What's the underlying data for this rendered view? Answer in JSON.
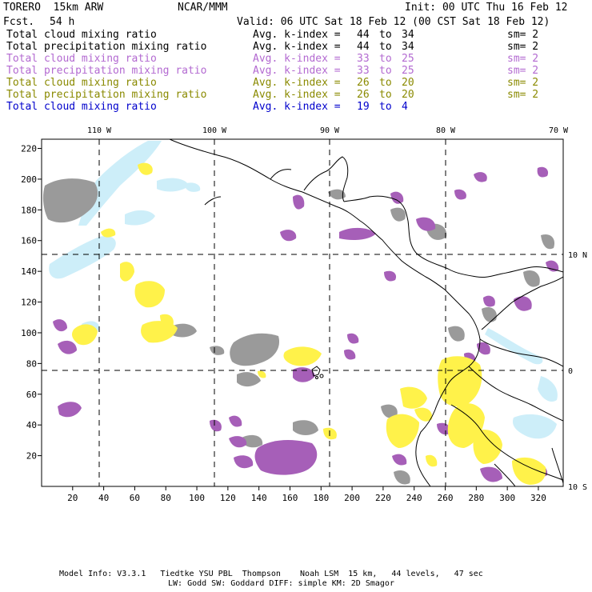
{
  "header": {
    "model": "TORERO  15km ARW",
    "org": "NCAR/MMM",
    "init": "Init: 00 UTC Thu 16 Feb 12",
    "fcst_label": "Fcst.",
    "fcst_value": "54 h",
    "valid": "Valid: 06 UTC Sat 18 Feb 12 (00 CST Sat 18 Feb 12)"
  },
  "legend_rows": [
    {
      "field": "Total cloud mixing ratio",
      "index_label": "Avg. k-index =",
      "from": "44",
      "to_word": "to",
      "to": "34",
      "sm": "sm= 2",
      "color": "#000000"
    },
    {
      "field": "Total precipitation mixing ratio",
      "index_label": "Avg. k-index =",
      "from": "44",
      "to_word": "to",
      "to": "34",
      "sm": "sm= 2",
      "color": "#000000"
    },
    {
      "field": "Total cloud mixing ratio",
      "index_label": "Avg. k-index =",
      "from": "33",
      "to_word": "to",
      "to": "25",
      "sm": "sm= 2",
      "color": "#b36ad1"
    },
    {
      "field": "Total precipitation mixing ratio",
      "index_label": "Avg. k-index =",
      "from": "33",
      "to_word": "to",
      "to": "25",
      "sm": "sm= 2",
      "color": "#b36ad1"
    },
    {
      "field": "Total cloud mixing ratio",
      "index_label": "Avg. k-index =",
      "from": "26",
      "to_word": "to",
      "to": "20",
      "sm": "sm= 2",
      "color": "#8a8a00"
    },
    {
      "field": "Total precipitation mixing ratio",
      "index_label": "Avg. k-index =",
      "from": "26",
      "to_word": "to",
      "to": "20",
      "sm": "sm= 2",
      "color": "#8a8a00"
    },
    {
      "field": "Total cloud mixing ratio",
      "index_label": "Avg. k-index =",
      "from": "19",
      "to_word": "to",
      "to": "4",
      "sm": "",
      "color": "#0000cc"
    }
  ],
  "map": {
    "lon_labels": [
      "110 W",
      "100 W",
      "90 W",
      "80 W",
      "70 W"
    ],
    "lat_labels": [
      "10 N",
      "0",
      "10 S"
    ],
    "x_ticks": [
      "20",
      "40",
      "60",
      "80",
      "100",
      "120",
      "140",
      "160",
      "180",
      "200",
      "220",
      "240",
      "260",
      "280",
      "300",
      "320"
    ],
    "y_ticks": [
      "20",
      "40",
      "60",
      "80",
      "100",
      "120",
      "140",
      "160",
      "180",
      "200",
      "220"
    ],
    "x_range": [
      0,
      336
    ],
    "y_range": [
      0,
      226
    ],
    "colors": {
      "grey": "#9a9a9a",
      "purple": "#a65fb8",
      "yellow": "#fff24a",
      "light_blue": "#cdeef9",
      "coast": "#000000"
    }
  },
  "footer": {
    "line1": "Model Info: V3.3.1   Tiedtke YSU PBL  Thompson    Noah LSM  15 km,   44 levels,   47 sec",
    "line2": "LW: Godd SW: Goddard DIFF: simple KM: 2D Smagor"
  }
}
